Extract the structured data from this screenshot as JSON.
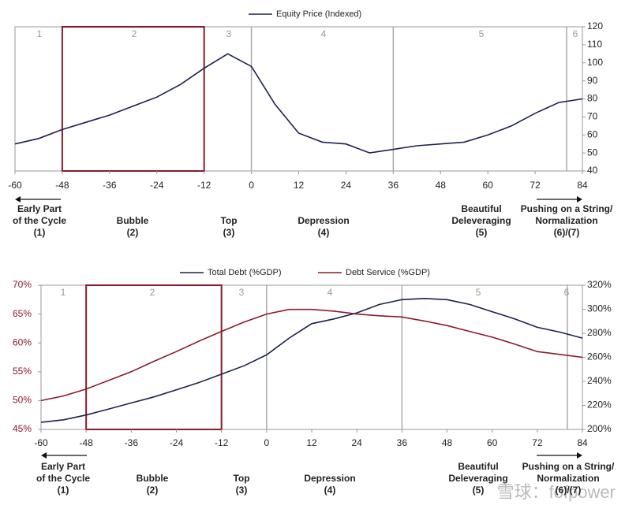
{
  "chart_data": [
    {
      "type": "line",
      "x": [
        -60,
        -54,
        -48,
        -42,
        -36,
        -30,
        -24,
        -18,
        -12,
        -6,
        0,
        6,
        12,
        18,
        24,
        30,
        36,
        42,
        48,
        54,
        60,
        66,
        72,
        78,
        84
      ],
      "series": [
        {
          "name": "Equity Price (Indexed)",
          "color": "#1c2152",
          "axis": "y2",
          "values": [
            55,
            58,
            63,
            67,
            71,
            76,
            81,
            88,
            97,
            105,
            98,
            77,
            61,
            56,
            55,
            50,
            52,
            54,
            55,
            56,
            60,
            65,
            72,
            78,
            80
          ]
        }
      ],
      "xlim": [
        -60,
        84
      ],
      "xticks": [
        -60,
        -48,
        -36,
        -24,
        -12,
        0,
        12,
        24,
        36,
        48,
        60,
        72,
        84
      ],
      "y2lim": [
        40,
        120
      ],
      "y2ticks": [
        40,
        50,
        60,
        70,
        80,
        90,
        100,
        110,
        120
      ],
      "highlight_range": [
        -48,
        -12
      ],
      "phase_lines": [
        0,
        36,
        80
      ],
      "phase_numbers": [
        "1",
        "2",
        "3",
        "4",
        "5",
        "6"
      ],
      "phase_labels": [
        [
          "Early Part",
          "of the Cycle",
          "(1)"
        ],
        [
          "Bubble",
          "(2)"
        ],
        [
          "Top",
          "(3)"
        ],
        [
          "Depression",
          "(4)"
        ],
        [
          "Beautiful",
          "Deleveraging",
          "(5)"
        ],
        [
          "Pushing on a String/",
          "Normalization",
          "(6)/(7)"
        ]
      ]
    },
    {
      "type": "line",
      "x": [
        -60,
        -54,
        -48,
        -42,
        -36,
        -30,
        -24,
        -18,
        -12,
        -6,
        0,
        6,
        12,
        18,
        24,
        30,
        36,
        42,
        48,
        54,
        60,
        66,
        72,
        78,
        84
      ],
      "series": [
        {
          "name": "Total Debt (%GDP)",
          "color": "#1c2152",
          "axis": "y2",
          "values": [
            206,
            208,
            212,
            217,
            222,
            227,
            233,
            239,
            246,
            253,
            262,
            276,
            288,
            292,
            297,
            304,
            308,
            309,
            308,
            304,
            298,
            292,
            285,
            281,
            276
          ]
        },
        {
          "name": "Debt Service (%GDP)",
          "color": "#8b1a2b",
          "axis": "y",
          "values": [
            50,
            50.8,
            52,
            53.5,
            55,
            56.8,
            58.5,
            60.3,
            62,
            63.6,
            65,
            65.8,
            65.8,
            65.5,
            65,
            64.7,
            64.5,
            63.8,
            63,
            62,
            61,
            59.8,
            58.5,
            58,
            57.5
          ]
        }
      ],
      "xlim": [
        -60,
        84
      ],
      "xticks": [
        -60,
        -48,
        -36,
        -24,
        -12,
        0,
        12,
        24,
        36,
        48,
        60,
        72,
        84
      ],
      "ylim": [
        45,
        70
      ],
      "yticks": [
        {
          "value": 45,
          "label": "45%"
        },
        {
          "value": 50,
          "label": "50%"
        },
        {
          "value": 55,
          "label": "55%"
        },
        {
          "value": 60,
          "label": "60%"
        },
        {
          "value": 65,
          "label": "65%"
        },
        {
          "value": 70,
          "label": "70%"
        }
      ],
      "y2lim": [
        200,
        320
      ],
      "y2ticks": [
        {
          "value": 200,
          "label": "200%"
        },
        {
          "value": 220,
          "label": "220%"
        },
        {
          "value": 240,
          "label": "240%"
        },
        {
          "value": 260,
          "label": "260%"
        },
        {
          "value": 280,
          "label": "280%"
        },
        {
          "value": 300,
          "label": "300%"
        },
        {
          "value": 320,
          "label": "320%"
        }
      ],
      "highlight_range": [
        -48,
        -12
      ],
      "phase_lines": [
        0,
        36,
        80
      ],
      "phase_numbers": [
        "1",
        "2",
        "3",
        "4",
        "5",
        "6"
      ],
      "phase_labels": [
        [
          "Early Part",
          "of the Cycle",
          "(1)"
        ],
        [
          "Bubble",
          "(2)"
        ],
        [
          "Top",
          "(3)"
        ],
        [
          "Depression",
          "(4)"
        ],
        [
          "Beautiful",
          "Deleveraging",
          "(5)"
        ],
        [
          "Pushing on a String/",
          "Normalization",
          "(6)/(7)"
        ]
      ]
    }
  ],
  "watermark": "雪球：fofpower"
}
